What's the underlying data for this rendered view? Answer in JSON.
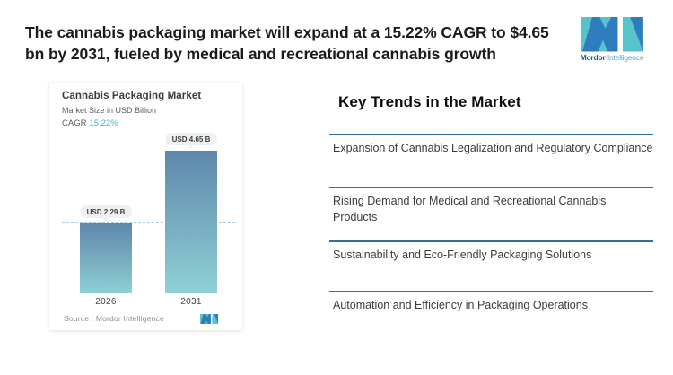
{
  "header": {
    "title_line1": "The cannabis packaging market will expand at a 15.22% CAGR to $4.65",
    "title_line2": "bn by 2031, fueled by medical and recreational cannabis growth",
    "logo": {
      "word1": "Mordor",
      "word2": "Intelligence"
    }
  },
  "chart_card": {
    "title": "Cannabis Packaging Market",
    "subtitle": "Market Size in USD Billion",
    "cagr_label": "CAGR",
    "cagr_value": "15.22%",
    "source": "Source :  Mordor Intelligence"
  },
  "chart_data": {
    "type": "bar",
    "title": "Cannabis Packaging Market",
    "subtitle": "Market Size in USD Billion",
    "cagr": "15.22%",
    "categories": [
      "2026",
      "2031"
    ],
    "values": [
      2.29,
      4.65
    ],
    "value_labels": [
      "USD 2.29 B",
      "USD 4.65 B"
    ],
    "unit": "USD Billion",
    "reference_line": 2.29,
    "grid": "off",
    "source": "Source :  Mordor Intelligence"
  },
  "trends": {
    "heading": "Key Trends in the Market",
    "items": [
      "Expansion of Cannabis Legalization and Regulatory Compliance",
      "Rising Demand for Medical and Recreational Cannabis Products",
      "Sustainability and Eco-Friendly Packaging Solutions",
      "Automation and Efficiency in Packaging Operations"
    ]
  },
  "colors": {
    "brand_teal": "#57c3cc",
    "brand_blue": "#2f7dbd",
    "divider_blue": "#2e6f9f",
    "cagr_blue": "#45b1d6",
    "bar_gradient_top": "#5d88ac",
    "bar_gradient_bottom": "#8fd0d7",
    "dashed_line": "#a9c8da",
    "pill_bg": "#eef1f2"
  }
}
